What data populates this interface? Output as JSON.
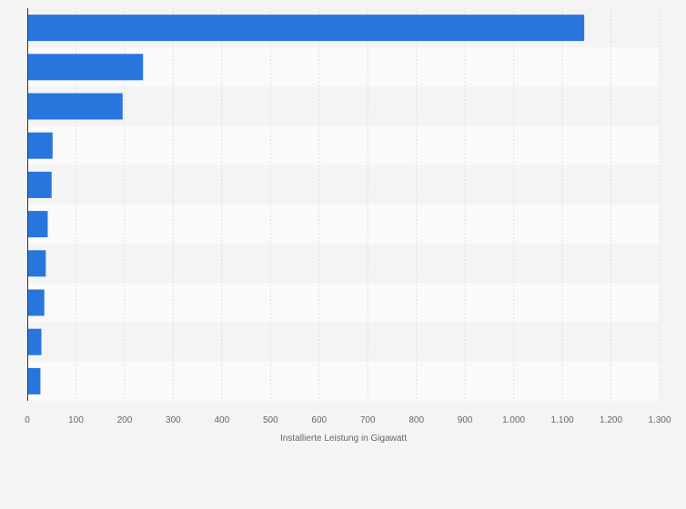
{
  "chart_data": {
    "type": "bar",
    "orientation": "horizontal",
    "title": "",
    "xlabel": "Installierte Leistung in Gigawatt",
    "ylabel": "",
    "categories": [
      "",
      "",
      "",
      "",
      "",
      "",
      "",
      "",
      "",
      ""
    ],
    "values": [
      1145,
      238,
      196,
      52,
      50,
      42,
      38,
      35,
      29,
      27
    ],
    "xlim": [
      0,
      1300
    ],
    "xticks": [
      0,
      100,
      200,
      300,
      400,
      500,
      600,
      700,
      800,
      900,
      1000,
      1100,
      1200,
      1300
    ],
    "xtick_labels": [
      "0",
      "100",
      "200",
      "300",
      "400",
      "500",
      "600",
      "700",
      "800",
      "900",
      "1.000",
      "1.100",
      "1.200",
      "1.300"
    ],
    "grid": "vertical dashed",
    "legend": "none",
    "colors": {
      "bar": "#2876dd",
      "band_light": "#f4f4f4",
      "band_lighter": "#fafafa",
      "grid": "#dddddd",
      "axis": "#333333",
      "text": "#666666",
      "background": "#f4f4f4"
    }
  }
}
